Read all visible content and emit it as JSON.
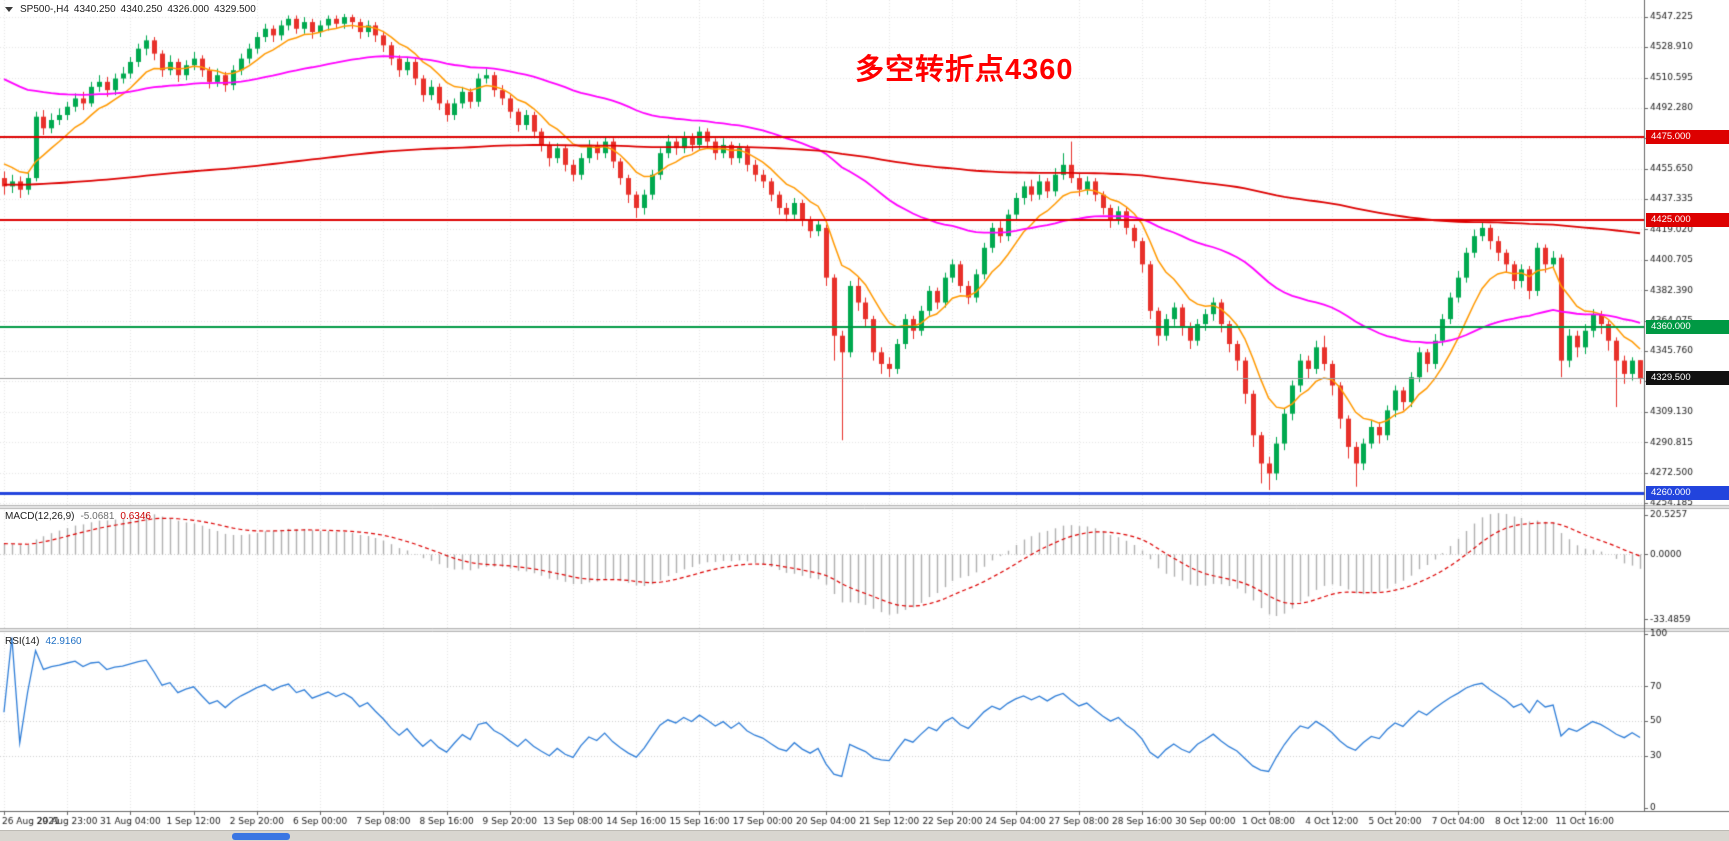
{
  "header": {
    "symbol": "SP500-,H4",
    "open": "4340.250",
    "high": "4340.250",
    "low": "4326.000",
    "close": "4329.500"
  },
  "annotation": {
    "text": "多空转折点4360",
    "color": "#ff0000"
  },
  "panes": {
    "macd": {
      "label": "MACD(12,26,9)",
      "value_main": "-5.0681",
      "value_signal": "0.6346"
    },
    "rsi": {
      "label": "RSI(14)",
      "value": "42.9160"
    }
  },
  "chart_data": {
    "type": "candlestick",
    "symbol": "SP500-",
    "timeframe": "H4",
    "title": "SP500- H4 candlestick chart with MACD and RSI",
    "price_axis_labels": [
      "4547.225",
      "4528.910",
      "4510.595",
      "4492.280",
      "4473.965",
      "4455.650",
      "4437.335",
      "4419.020",
      "4400.705",
      "4382.390",
      "4364.075",
      "4345.760",
      "4327.445",
      "4309.130",
      "4290.815",
      "4272.500",
      "4254.185"
    ],
    "macd_axis_labels": [
      "20.5257",
      "0.0000",
      "-33.4859"
    ],
    "rsi_axis_labels": [
      "100",
      "70",
      "50",
      "30",
      "0"
    ],
    "rsi_levels": [
      30,
      50,
      70
    ],
    "time_axis_labels": [
      "26 Aug 2021",
      "29 Aug 23:00",
      "31 Aug 04:00",
      "1 Sep 12:00",
      "2 Sep 20:00",
      "6 Sep 00:00",
      "7 Sep 08:00",
      "8 Sep 16:00",
      "9 Sep 20:00",
      "13 Sep 08:00",
      "14 Sep 16:00",
      "15 Sep 16:00",
      "17 Sep 00:00",
      "20 Sep 04:00",
      "21 Sep 12:00",
      "22 Sep 20:00",
      "24 Sep 04:00",
      "27 Sep 08:00",
      "28 Sep 16:00",
      "30 Sep 00:00",
      "1 Oct 08:00",
      "4 Oct 12:00",
      "5 Oct 20:00",
      "7 Oct 04:00",
      "8 Oct 12:00",
      "11 Oct 16:00"
    ],
    "label_every_n_bars": 8,
    "candles": [
      [
        4450,
        4454,
        4440,
        4445
      ],
      [
        4445,
        4452,
        4441,
        4448
      ],
      [
        4448,
        4451,
        4438,
        4443
      ],
      [
        4443,
        4453,
        4440,
        4450
      ],
      [
        4450,
        4490,
        4448,
        4487
      ],
      [
        4487,
        4491,
        4476,
        4480
      ],
      [
        4480,
        4489,
        4477,
        4485
      ],
      [
        4485,
        4492,
        4482,
        4488
      ],
      [
        4488,
        4496,
        4485,
        4493
      ],
      [
        4493,
        4501,
        4490,
        4498
      ],
      [
        4498,
        4502,
        4491,
        4495
      ],
      [
        4495,
        4508,
        4493,
        4505
      ],
      [
        4505,
        4512,
        4502,
        4508
      ],
      [
        4508,
        4511,
        4499,
        4503
      ],
      [
        4503,
        4513,
        4500,
        4510
      ],
      [
        4510,
        4517,
        4507,
        4513
      ],
      [
        4513,
        4523,
        4510,
        4520
      ],
      [
        4520,
        4531,
        4517,
        4528
      ],
      [
        4528,
        4536,
        4524,
        4533
      ],
      [
        4533,
        4535,
        4521,
        4525
      ],
      [
        4525,
        4527,
        4511,
        4515
      ],
      [
        4515,
        4524,
        4512,
        4520
      ],
      [
        4520,
        4522,
        4508,
        4512
      ],
      [
        4512,
        4521,
        4509,
        4518
      ],
      [
        4518,
        4526,
        4515,
        4522
      ],
      [
        4522,
        4524,
        4511,
        4515
      ],
      [
        4515,
        4517,
        4504,
        4508
      ],
      [
        4508,
        4516,
        4505,
        4512
      ],
      [
        4512,
        4514,
        4502,
        4506
      ],
      [
        4506,
        4518,
        4503,
        4515
      ],
      [
        4515,
        4525,
        4512,
        4522
      ],
      [
        4522,
        4531,
        4519,
        4528
      ],
      [
        4528,
        4538,
        4525,
        4535
      ],
      [
        4535,
        4543,
        4532,
        4540
      ],
      [
        4540,
        4542,
        4532,
        4536
      ],
      [
        4536,
        4545,
        4533,
        4542
      ],
      [
        4542,
        4548,
        4539,
        4546
      ],
      [
        4546,
        4548,
        4537,
        4540
      ],
      [
        4540,
        4547,
        4537,
        4544
      ],
      [
        4544,
        4546,
        4534,
        4538
      ],
      [
        4538,
        4545,
        4535,
        4542
      ],
      [
        4542,
        4548,
        4539,
        4546
      ],
      [
        4546,
        4548,
        4540,
        4543
      ],
      [
        4543,
        4548.9,
        4540,
        4547
      ],
      [
        4547,
        4548.5,
        4540,
        4544
      ],
      [
        4544,
        4546,
        4534,
        4538
      ],
      [
        4538,
        4545,
        4535,
        4542
      ],
      [
        4542,
        4544,
        4532,
        4536
      ],
      [
        4536,
        4538,
        4526,
        4530
      ],
      [
        4530,
        4532,
        4518,
        4522
      ],
      [
        4522,
        4524,
        4511,
        4515
      ],
      [
        4515,
        4523,
        4512,
        4520
      ],
      [
        4520,
        4522,
        4506,
        4510
      ],
      [
        4510,
        4512,
        4496,
        4500
      ],
      [
        4500,
        4509,
        4497,
        4505
      ],
      [
        4505,
        4507,
        4491,
        4495
      ],
      [
        4495,
        4497,
        4484,
        4488
      ],
      [
        4488,
        4498,
        4485,
        4495
      ],
      [
        4495,
        4505,
        4492,
        4502
      ],
      [
        4502,
        4504,
        4492,
        4496
      ],
      [
        4496,
        4513,
        4493,
        4510
      ],
      [
        4510,
        4516,
        4507,
        4512
      ],
      [
        4512,
        4514,
        4499,
        4503
      ],
      [
        4503,
        4506,
        4494,
        4498
      ],
      [
        4498,
        4500,
        4486,
        4490
      ],
      [
        4490,
        4492,
        4478,
        4482
      ],
      [
        4482,
        4491,
        4479,
        4488
      ],
      [
        4488,
        4490,
        4474,
        4478
      ],
      [
        4478,
        4480,
        4466,
        4470
      ],
      [
        4470,
        4472,
        4457,
        4462
      ],
      [
        4462,
        4471,
        4459,
        4468
      ],
      [
        4468,
        4470,
        4454,
        4458
      ],
      [
        4458,
        4461,
        4448,
        4452
      ],
      [
        4452,
        4465,
        4449,
        4462
      ],
      [
        4462,
        4473,
        4459,
        4470
      ],
      [
        4470,
        4472,
        4461,
        4465
      ],
      [
        4465,
        4475,
        4462,
        4472
      ],
      [
        4472,
        4474,
        4456,
        4460
      ],
      [
        4460,
        4462,
        4446,
        4450
      ],
      [
        4450,
        4452,
        4435,
        4440
      ],
      [
        4440,
        4442,
        4426,
        4432
      ],
      [
        4432,
        4443,
        4428,
        4440
      ],
      [
        4440,
        4455,
        4437,
        4452
      ],
      [
        4452,
        4468,
        4449,
        4465
      ],
      [
        4465,
        4476,
        4462,
        4472
      ],
      [
        4472,
        4474,
        4464,
        4468
      ],
      [
        4468,
        4478,
        4465,
        4475
      ],
      [
        4475,
        4477,
        4466,
        4470
      ],
      [
        4470,
        4481,
        4467,
        4478
      ],
      [
        4478,
        4480,
        4468,
        4472
      ],
      [
        4472,
        4474,
        4461,
        4465
      ],
      [
        4465,
        4474,
        4462,
        4470
      ],
      [
        4470,
        4472,
        4458,
        4462
      ],
      [
        4462,
        4471,
        4459,
        4468
      ],
      [
        4468,
        4470,
        4454,
        4458
      ],
      [
        4458,
        4461,
        4448,
        4452
      ],
      [
        4452,
        4455,
        4444,
        4448
      ],
      [
        4448,
        4450,
        4436,
        4440
      ],
      [
        4440,
        4442,
        4428,
        4432
      ],
      [
        4432,
        4435,
        4424,
        4428
      ],
      [
        4428,
        4438,
        4425,
        4435
      ],
      [
        4435,
        4437,
        4421,
        4425
      ],
      [
        4425,
        4427,
        4414,
        4418
      ],
      [
        4418,
        4425,
        4415,
        4422
      ],
      [
        4420,
        4422,
        4385,
        4390
      ],
      [
        4390,
        4392,
        4340,
        4355
      ],
      [
        4355,
        4358,
        4292,
        4345
      ],
      [
        4345,
        4388,
        4342,
        4385
      ],
      [
        4385,
        4390,
        4370,
        4375
      ],
      [
        4375,
        4378,
        4360,
        4365
      ],
      [
        4365,
        4367,
        4340,
        4345
      ],
      [
        4345,
        4348,
        4332,
        4338
      ],
      [
        4338,
        4342,
        4330,
        4335
      ],
      [
        4335,
        4353,
        4332,
        4350
      ],
      [
        4350,
        4368,
        4347,
        4365
      ],
      [
        4365,
        4367,
        4353,
        4358
      ],
      [
        4358,
        4373,
        4355,
        4370
      ],
      [
        4370,
        4385,
        4367,
        4382
      ],
      [
        4382,
        4384,
        4371,
        4375
      ],
      [
        4375,
        4393,
        4372,
        4390
      ],
      [
        4390,
        4401,
        4387,
        4398
      ],
      [
        4398,
        4400,
        4381,
        4385
      ],
      [
        4385,
        4388,
        4374,
        4378
      ],
      [
        4378,
        4395,
        4375,
        4392
      ],
      [
        4392,
        4411,
        4389,
        4408
      ],
      [
        4408,
        4423,
        4405,
        4420
      ],
      [
        4420,
        4424,
        4411,
        4415
      ],
      [
        4415,
        4431,
        4412,
        4428
      ],
      [
        4428,
        4441,
        4425,
        4438
      ],
      [
        4438,
        4448,
        4434,
        4445
      ],
      [
        4445,
        4449,
        4436,
        4440
      ],
      [
        4440,
        4452,
        4437,
        4448
      ],
      [
        4448,
        4450,
        4438,
        4442
      ],
      [
        4442,
        4456,
        4439,
        4452
      ],
      [
        4452,
        4465,
        4449,
        4458
      ],
      [
        4458,
        4472,
        4447,
        4450
      ],
      [
        4450,
        4453,
        4439,
        4443
      ],
      [
        4443,
        4451,
        4440,
        4448
      ],
      [
        4448,
        4450,
        4436,
        4440
      ],
      [
        4440,
        4442,
        4428,
        4432
      ],
      [
        4432,
        4434,
        4420,
        4425
      ],
      [
        4425,
        4433,
        4422,
        4430
      ],
      [
        4430,
        4432,
        4416,
        4420
      ],
      [
        4420,
        4422,
        4408,
        4412
      ],
      [
        4412,
        4414,
        4393,
        4398
      ],
      [
        4398,
        4400,
        4365,
        4370
      ],
      [
        4370,
        4372,
        4349,
        4355
      ],
      [
        4355,
        4368,
        4352,
        4365
      ],
      [
        4365,
        4375,
        4361,
        4372
      ],
      [
        4372,
        4374,
        4355,
        4360
      ],
      [
        4360,
        4363,
        4347,
        4352
      ],
      [
        4352,
        4365,
        4349,
        4362
      ],
      [
        4362,
        4371,
        4358,
        4368
      ],
      [
        4368,
        4378,
        4364,
        4375
      ],
      [
        4375,
        4377,
        4357,
        4362
      ],
      [
        4362,
        4364,
        4345,
        4350
      ],
      [
        4350,
        4352,
        4334,
        4340
      ],
      [
        4340,
        4342,
        4314,
        4320
      ],
      [
        4320,
        4322,
        4288,
        4295
      ],
      [
        4295,
        4297,
        4266,
        4278
      ],
      [
        4278,
        4282,
        4262,
        4272
      ],
      [
        4272,
        4294,
        4268,
        4290
      ],
      [
        4290,
        4311,
        4286,
        4308
      ],
      [
        4308,
        4328,
        4304,
        4325
      ],
      [
        4325,
        4344,
        4321,
        4340
      ],
      [
        4340,
        4343,
        4329,
        4335
      ],
      [
        4335,
        4352,
        4332,
        4348
      ],
      [
        4348,
        4355,
        4334,
        4338
      ],
      [
        4338,
        4340,
        4319,
        4325
      ],
      [
        4325,
        4327,
        4299,
        4305
      ],
      [
        4305,
        4307,
        4281,
        4288
      ],
      [
        4288,
        4291,
        4264,
        4278
      ],
      [
        4278,
        4293,
        4274,
        4290
      ],
      [
        4290,
        4304,
        4287,
        4300
      ],
      [
        4300,
        4303,
        4290,
        4295
      ],
      [
        4295,
        4313,
        4292,
        4310
      ],
      [
        4310,
        4325,
        4306,
        4322
      ],
      [
        4322,
        4324,
        4310,
        4315
      ],
      [
        4315,
        4333,
        4312,
        4330
      ],
      [
        4330,
        4348,
        4327,
        4345
      ],
      [
        4345,
        4347,
        4333,
        4338
      ],
      [
        4338,
        4356,
        4335,
        4352
      ],
      [
        4352,
        4368,
        4349,
        4365
      ],
      [
        4365,
        4381,
        4362,
        4378
      ],
      [
        4378,
        4394,
        4375,
        4390
      ],
      [
        4390,
        4408,
        4387,
        4405
      ],
      [
        4405,
        4419,
        4402,
        4415
      ],
      [
        4415,
        4423,
        4412,
        4420
      ],
      [
        4420,
        4422,
        4407,
        4412
      ],
      [
        4412,
        4415,
        4400,
        4405
      ],
      [
        4405,
        4407,
        4393,
        4398
      ],
      [
        4398,
        4400,
        4383,
        4388
      ],
      [
        4388,
        4398,
        4384,
        4395
      ],
      [
        4395,
        4397,
        4377,
        4382
      ],
      [
        4382,
        4411,
        4379,
        4408
      ],
      [
        4408,
        4410,
        4393,
        4398
      ],
      [
        4398,
        4406,
        4395,
        4402
      ],
      [
        4402,
        4404,
        4330,
        4340
      ],
      [
        4340,
        4359,
        4336,
        4355
      ],
      [
        4355,
        4358,
        4342,
        4348
      ],
      [
        4348,
        4362,
        4344,
        4358
      ],
      [
        4358,
        4371,
        4354,
        4368
      ],
      [
        4368,
        4370,
        4356,
        4362
      ],
      [
        4362,
        4364,
        4346,
        4352
      ],
      [
        4352,
        4354,
        4312,
        4340
      ],
      [
        4340,
        4343,
        4326,
        4332
      ],
      [
        4332,
        4342,
        4328,
        4340
      ],
      [
        4340.25,
        4340.25,
        4326,
        4329.5
      ]
    ],
    "moving_averages": [
      {
        "name": "fast-ma",
        "type": "ema",
        "period": 9,
        "start_value": 4462,
        "color": "#ff9900",
        "line_width": 1.5
      },
      {
        "name": "medium-ma",
        "type": "ema",
        "period": 55,
        "start_value": 4512,
        "color": "#ff00ff",
        "line_width": 1.8
      },
      {
        "name": "slow-ma",
        "type": "ema",
        "period": 300,
        "start_value": 4446,
        "color": "#dd0000",
        "line_width": 1.8
      }
    ],
    "hlines": [
      {
        "price": 4475.0,
        "label": "4475.000",
        "color": "#dd0000",
        "width": 2
      },
      {
        "price": 4425.0,
        "label": "4425.000",
        "color": "#dd0000",
        "width": 2
      },
      {
        "price": 4360.0,
        "label": "4360.000",
        "color": "#009944",
        "width": 2
      },
      {
        "price": 4260.0,
        "label": "4260.000",
        "color": "#2244dd",
        "width": 3
      }
    ],
    "current_price": {
      "price": 4329.5,
      "label": "4329.500",
      "bg": "#111111"
    },
    "indicators": {
      "macd": {
        "fast": 12,
        "slow": 26,
        "signal": 9
      },
      "rsi": {
        "period": 14
      }
    },
    "colors": {
      "bull": "#00a94f",
      "bear": "#e8302a",
      "macd_hist": "#b0b0b0",
      "macd_signal": "#dd0000",
      "rsi": "#2f7ed8",
      "grid": "#e6e6e6"
    },
    "ylim_main": [
      4254.185,
      4553.6
    ],
    "ylim_macd": [
      -38,
      24
    ],
    "ylim_rsi": [
      0,
      100
    ]
  }
}
